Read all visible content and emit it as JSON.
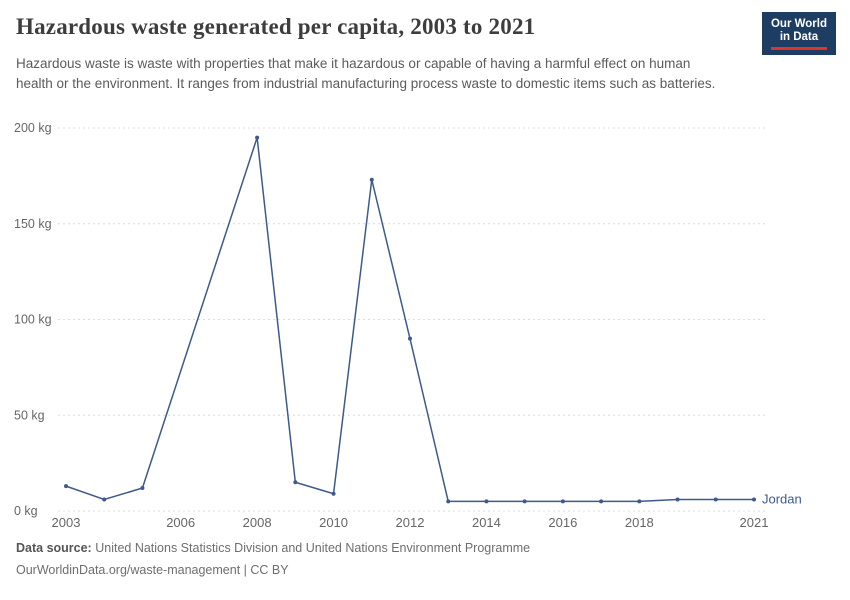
{
  "header": {
    "title": "Hazardous waste generated per capita, 2003 to 2021",
    "subtitle": "Hazardous waste is waste with properties that make it hazardous or capable of having a harmful effect on human health or the environment. It ranges from industrial manufacturing process waste to domestic items such as batteries.",
    "logo": {
      "line1": "Our World",
      "line2": "in Data"
    }
  },
  "colors": {
    "series_line": "#3d5a8c",
    "logo_navy": "#1d3d63",
    "logo_red": "#e0342b",
    "gridline": "#dcdcdc"
  },
  "chart_data": {
    "type": "line",
    "title": "Hazardous waste generated per capita, 2003 to 2021",
    "unit": "kg",
    "x": [
      2003,
      2004,
      2005,
      2008,
      2009,
      2010,
      2011,
      2012,
      2013,
      2014,
      2015,
      2016,
      2017,
      2018,
      2019,
      2020,
      2021
    ],
    "series": [
      {
        "name": "Jordan",
        "color": "#3d5a8c",
        "values": [
          13,
          6,
          12,
          195,
          15,
          9,
          173,
          90,
          5,
          5,
          5,
          5,
          5,
          5,
          6,
          6,
          6
        ]
      }
    ],
    "xlim": [
      2003,
      2021
    ],
    "ylim": [
      0,
      200
    ],
    "x_ticks": [
      2003,
      2006,
      2008,
      2010,
      2012,
      2014,
      2016,
      2018,
      2021
    ],
    "y_ticks": [
      {
        "value": 0,
        "label": "0 kg"
      },
      {
        "value": 50,
        "label": "50 kg"
      },
      {
        "value": 100,
        "label": "100 kg"
      },
      {
        "value": 150,
        "label": "150 kg"
      },
      {
        "value": 200,
        "label": "200 kg"
      }
    ],
    "grid": "horizontal dashed",
    "legend_position": "end-of-line label"
  },
  "footer": {
    "source_label": "Data source:",
    "source_text": "United Nations Statistics Division and United Nations Environment Programme",
    "license_text": "OurWorldinData.org/waste-management | CC BY"
  }
}
